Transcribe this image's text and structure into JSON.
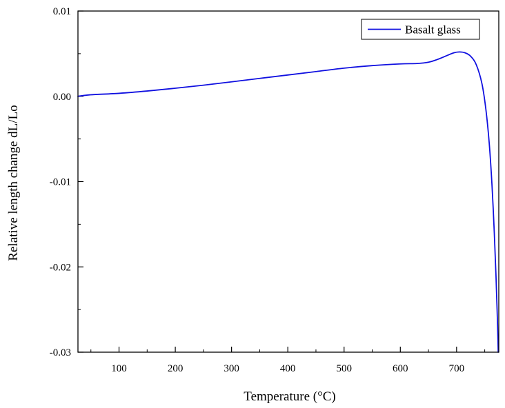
{
  "chart_data": {
    "type": "line",
    "title": "",
    "xlabel": "Temperature (°C)",
    "ylabel": "Relative length change dL/Lo",
    "xlim": [
      27,
      775
    ],
    "ylim": [
      -0.03,
      0.01
    ],
    "x_ticks": [
      {
        "value": 100,
        "label": "100"
      },
      {
        "value": 200,
        "label": "200"
      },
      {
        "value": 300,
        "label": "300"
      },
      {
        "value": 400,
        "label": "400"
      },
      {
        "value": 500,
        "label": "500"
      },
      {
        "value": 600,
        "label": "600"
      },
      {
        "value": 700,
        "label": "700"
      }
    ],
    "x_minor_ticks": [
      50,
      150,
      250,
      350,
      450,
      550,
      650,
      750
    ],
    "y_ticks": [
      {
        "value": 0.01,
        "label": "0.01"
      },
      {
        "value": 0.0,
        "label": "0.00"
      },
      {
        "value": -0.01,
        "label": "-0.01"
      },
      {
        "value": -0.02,
        "label": "-0.02"
      },
      {
        "value": -0.03,
        "label": "-0.03"
      }
    ],
    "y_minor_ticks": [
      0.005,
      -0.005,
      -0.015,
      -0.025
    ],
    "grid": false,
    "legend_position": "top-right",
    "series": [
      {
        "name": "Basalt glass",
        "color": "#1010e0",
        "points": [
          [
            27,
            0.0
          ],
          [
            50,
            0.00018
          ],
          [
            100,
            0.00035
          ],
          [
            150,
            0.00062
          ],
          [
            200,
            0.00095
          ],
          [
            250,
            0.0013
          ],
          [
            300,
            0.0017
          ],
          [
            350,
            0.0021
          ],
          [
            400,
            0.0025
          ],
          [
            450,
            0.0029
          ],
          [
            500,
            0.0033
          ],
          [
            550,
            0.0036
          ],
          [
            600,
            0.0038
          ],
          [
            630,
            0.00385
          ],
          [
            650,
            0.004
          ],
          [
            665,
            0.0043
          ],
          [
            680,
            0.0047
          ],
          [
            695,
            0.0051
          ],
          [
            705,
            0.0052
          ],
          [
            715,
            0.0051
          ],
          [
            725,
            0.0047
          ],
          [
            735,
            0.0037
          ],
          [
            745,
            0.0015
          ],
          [
            752,
            -0.0015
          ],
          [
            758,
            -0.0055
          ],
          [
            763,
            -0.0105
          ],
          [
            767,
            -0.016
          ],
          [
            770,
            -0.021
          ],
          [
            772,
            -0.025
          ],
          [
            773.5,
            -0.0285
          ],
          [
            774,
            -0.03
          ]
        ]
      }
    ]
  }
}
